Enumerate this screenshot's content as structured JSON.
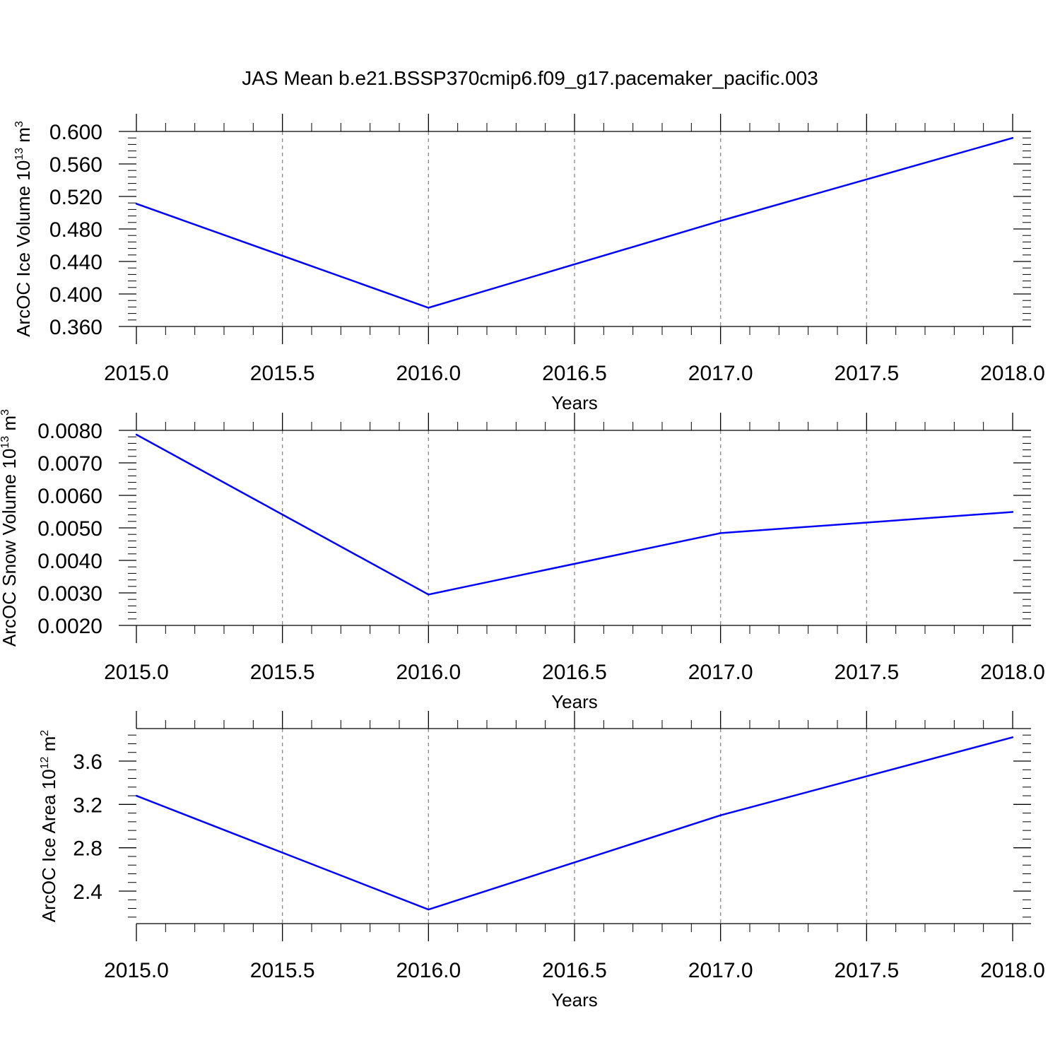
{
  "title": "JAS Mean b.e21.BSSP370cmip6.f09_g17.pacemaker_pacific.003",
  "line_color": "#0000ff",
  "chart_data": [
    {
      "type": "line",
      "ylabel_main": "ArcOC Ice Volume 10",
      "ylabel_sup": "13",
      "ylabel_unit": " m",
      "ylabel_unit_sup": "3",
      "xlabel": "Years",
      "xlim": [
        2015.0,
        2018.0
      ],
      "ylim": [
        0.36,
        0.6
      ],
      "xticks": [
        "2015.0",
        "2015.5",
        "2016.0",
        "2016.5",
        "2017.0",
        "2017.5",
        "2018.0"
      ],
      "yticks": [
        "0.360",
        "0.400",
        "0.440",
        "0.480",
        "0.520",
        "0.560",
        "0.600"
      ],
      "x": [
        2015,
        2016,
        2017,
        2018
      ],
      "series": [
        {
          "values": [
            0.511,
            0.383,
            0.49,
            0.592
          ]
        }
      ]
    },
    {
      "type": "line",
      "ylabel_main": "ArcOC Snow Volume 10",
      "ylabel_sup": "13",
      "ylabel_unit": " m",
      "ylabel_unit_sup": "3",
      "xlabel": "Years",
      "xlim": [
        2015.0,
        2018.0
      ],
      "ylim": [
        0.002,
        0.008
      ],
      "xticks": [
        "2015.0",
        "2015.5",
        "2016.0",
        "2016.5",
        "2017.0",
        "2017.5",
        "2018.0"
      ],
      "yticks": [
        "0.0020",
        "0.0030",
        "0.0040",
        "0.0050",
        "0.0060",
        "0.0070",
        "0.0080"
      ],
      "x": [
        2015,
        2016,
        2017,
        2018
      ],
      "series": [
        {
          "values": [
            0.00787,
            0.00295,
            0.00484,
            0.00549
          ]
        }
      ]
    },
    {
      "type": "line",
      "ylabel_main": "ArcOC Ice Area 10",
      "ylabel_sup": "12",
      "ylabel_unit": " m",
      "ylabel_unit_sup": "2",
      "xlabel": "Years",
      "xlim": [
        2015.0,
        2018.0
      ],
      "ylim": [
        2.1,
        3.9
      ],
      "xticks": [
        "2015.0",
        "2015.5",
        "2016.0",
        "2016.5",
        "2017.0",
        "2017.5",
        "2018.0"
      ],
      "yticks": [
        "2.4",
        "2.8",
        "3.2",
        "3.6"
      ],
      "x": [
        2015,
        2016,
        2017,
        2018
      ],
      "series": [
        {
          "values": [
            3.28,
            2.23,
            3.1,
            3.82
          ]
        }
      ]
    }
  ]
}
